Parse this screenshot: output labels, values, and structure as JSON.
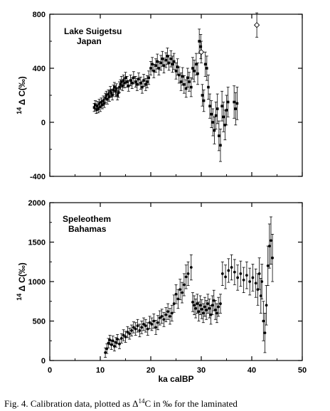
{
  "caption": {
    "prefix": "Fig.  4. Calibration data, plotted as Δ",
    "sup": "14",
    "suffix": "C in ‰ for the laminated"
  },
  "chart_data": [
    {
      "type": "scatter",
      "annotation": [
        "Lake Suigetsu",
        "Japan"
      ],
      "ylabel_sup": "14",
      "ylabel": "Δ C(‰)",
      "xlabel": "",
      "xlim": [
        0,
        50
      ],
      "ylim": [
        -400,
        800
      ],
      "xticks": [
        0,
        10,
        20,
        30,
        40,
        50
      ],
      "yticks": [
        -400,
        0,
        400,
        800
      ],
      "show_x_tick_labels": false,
      "grid": false,
      "series": [
        {
          "marker": "filled-square",
          "points": [
            [
              8.8,
              110,
              30
            ],
            [
              9.0,
              130,
              30
            ],
            [
              9.2,
              95,
              30
            ],
            [
              9.4,
              120,
              35
            ],
            [
              9.6,
              100,
              30
            ],
            [
              9.8,
              140,
              30
            ],
            [
              10.0,
              115,
              35
            ],
            [
              10.2,
              150,
              30
            ],
            [
              10.4,
              130,
              30
            ],
            [
              10.6,
              160,
              35
            ],
            [
              10.8,
              140,
              30
            ],
            [
              11.0,
              180,
              35
            ],
            [
              11.2,
              200,
              30
            ],
            [
              11.4,
              170,
              35
            ],
            [
              11.6,
              210,
              30
            ],
            [
              11.8,
              190,
              35
            ],
            [
              12.0,
              230,
              35
            ],
            [
              12.2,
              215,
              30
            ],
            [
              12.4,
              200,
              35
            ],
            [
              12.6,
              240,
              35
            ],
            [
              12.8,
              260,
              35
            ],
            [
              13.0,
              230,
              40
            ],
            [
              13.2,
              250,
              35
            ],
            [
              13.4,
              200,
              35
            ],
            [
              13.6,
              220,
              35
            ],
            [
              13.8,
              260,
              40
            ],
            [
              14.0,
              280,
              35
            ],
            [
              14.2,
              300,
              40
            ],
            [
              14.4,
              270,
              35
            ],
            [
              14.6,
              310,
              40
            ],
            [
              14.8,
              290,
              35
            ],
            [
              15.0,
              330,
              40
            ],
            [
              15.3,
              300,
              40
            ],
            [
              15.6,
              270,
              40
            ],
            [
              16.0,
              310,
              40
            ],
            [
              16.3,
              290,
              40
            ],
            [
              16.6,
              330,
              45
            ],
            [
              17.0,
              300,
              40
            ],
            [
              17.3,
              280,
              45
            ],
            [
              17.6,
              320,
              45
            ],
            [
              18.0,
              290,
              45
            ],
            [
              18.3,
              260,
              45
            ],
            [
              18.6,
              310,
              45
            ],
            [
              19.0,
              280,
              45
            ],
            [
              19.3,
              300,
              45
            ],
            [
              19.6,
              330,
              50
            ],
            [
              20.0,
              400,
              50
            ],
            [
              20.3,
              430,
              50
            ],
            [
              20.6,
              380,
              50
            ],
            [
              21.0,
              420,
              50
            ],
            [
              21.3,
              450,
              55
            ],
            [
              21.6,
              400,
              50
            ],
            [
              22.0,
              440,
              55
            ],
            [
              22.3,
              470,
              55
            ],
            [
              22.6,
              420,
              55
            ],
            [
              23.0,
              460,
              55
            ],
            [
              23.3,
              490,
              60
            ],
            [
              23.6,
              440,
              55
            ],
            [
              24.0,
              470,
              60
            ],
            [
              24.3,
              430,
              60
            ],
            [
              24.6,
              450,
              60
            ],
            [
              25.0,
              380,
              60
            ],
            [
              25.3,
              410,
              60
            ],
            [
              25.6,
              350,
              60
            ],
            [
              26.0,
              300,
              65
            ],
            [
              26.3,
              340,
              65
            ],
            [
              26.6,
              280,
              65
            ],
            [
              27.0,
              250,
              65
            ],
            [
              27.3,
              330,
              70
            ],
            [
              27.6,
              300,
              70
            ],
            [
              28.0,
              260,
              70
            ],
            [
              28.3,
              400,
              80
            ],
            [
              28.6,
              380,
              80
            ],
            [
              29.0,
              430,
              80
            ],
            [
              29.3,
              360,
              80
            ],
            [
              29.6,
              600,
              90
            ],
            [
              29.9,
              560,
              90
            ],
            [
              30.2,
              200,
              80
            ],
            [
              30.5,
              160,
              80
            ],
            [
              30.8,
              430,
              90
            ],
            [
              31.1,
              400,
              90
            ],
            [
              31.4,
              260,
              90
            ],
            [
              31.7,
              120,
              90
            ],
            [
              32.0,
              60,
              100
            ],
            [
              32.3,
              0,
              100
            ],
            [
              32.6,
              -60,
              100
            ],
            [
              32.9,
              50,
              100
            ],
            [
              33.2,
              100,
              110
            ],
            [
              33.5,
              -100,
              110
            ],
            [
              33.8,
              -170,
              120
            ],
            [
              34.1,
              120,
              110
            ],
            [
              34.4,
              40,
              110
            ],
            [
              34.7,
              -20,
              110
            ],
            [
              35.0,
              90,
              110
            ],
            [
              35.3,
              150,
              110
            ],
            [
              36.5,
              150,
              120
            ],
            [
              36.8,
              100,
              120
            ],
            [
              37.1,
              140,
              120
            ]
          ]
        },
        {
          "marker": "open-diamond",
          "points": [
            [
              30.0,
              520,
              80
            ],
            [
              41.0,
              720,
              90
            ]
          ]
        }
      ]
    },
    {
      "type": "scatter",
      "annotation": [
        "Speleothem",
        "Bahamas"
      ],
      "ylabel_sup": "14",
      "ylabel": "Δ C(‰)",
      "xlabel": "ka calBP",
      "xlim": [
        0,
        50
      ],
      "ylim": [
        0,
        2000
      ],
      "xticks": [
        0,
        10,
        20,
        30,
        40,
        50
      ],
      "yticks": [
        0,
        500,
        1000,
        1500,
        2000
      ],
      "show_x_tick_labels": true,
      "grid": false,
      "series": [
        {
          "marker": "filled-circle",
          "points": [
            [
              11.0,
              100,
              60
            ],
            [
              11.3,
              150,
              60
            ],
            [
              11.6,
              220,
              60
            ],
            [
              11.9,
              260,
              60
            ],
            [
              12.2,
              200,
              60
            ],
            [
              12.5,
              250,
              60
            ],
            [
              12.8,
              180,
              60
            ],
            [
              13.1,
              230,
              60
            ],
            [
              13.4,
              270,
              60
            ],
            [
              13.8,
              210,
              60
            ],
            [
              14.2,
              280,
              60
            ],
            [
              14.6,
              320,
              70
            ],
            [
              15.0,
              300,
              70
            ],
            [
              15.4,
              360,
              70
            ],
            [
              15.8,
              340,
              70
            ],
            [
              16.2,
              380,
              70
            ],
            [
              16.6,
              420,
              70
            ],
            [
              17.0,
              400,
              80
            ],
            [
              17.4,
              440,
              80
            ],
            [
              17.8,
              380,
              80
            ],
            [
              18.2,
              420,
              80
            ],
            [
              18.6,
              460,
              80
            ],
            [
              19.0,
              440,
              80
            ],
            [
              19.4,
              400,
              80
            ],
            [
              19.8,
              480,
              80
            ],
            [
              20.2,
              460,
              80
            ],
            [
              20.6,
              500,
              90
            ],
            [
              21.0,
              420,
              90
            ],
            [
              21.4,
              480,
              90
            ],
            [
              21.8,
              540,
              90
            ],
            [
              22.2,
              560,
              90
            ],
            [
              22.6,
              520,
              90
            ],
            [
              23.0,
              580,
              90
            ],
            [
              23.4,
              620,
              100
            ],
            [
              23.8,
              560,
              100
            ],
            [
              24.2,
              600,
              100
            ],
            [
              24.6,
              720,
              110
            ],
            [
              25.0,
              840,
              120
            ],
            [
              25.4,
              780,
              120
            ],
            [
              25.8,
              900,
              130
            ],
            [
              26.2,
              860,
              130
            ],
            [
              26.6,
              960,
              140
            ],
            [
              27.0,
              1060,
              150
            ],
            [
              27.4,
              1100,
              150
            ],
            [
              28.0,
              1180,
              160
            ],
            [
              28.3,
              740,
              120
            ],
            [
              28.6,
              700,
              120
            ],
            [
              28.9,
              660,
              120
            ],
            [
              29.2,
              720,
              120
            ],
            [
              29.5,
              620,
              120
            ],
            [
              29.8,
              700,
              120
            ],
            [
              30.1,
              650,
              120
            ],
            [
              30.4,
              600,
              120
            ],
            [
              30.7,
              680,
              120
            ],
            [
              31.0,
              640,
              120
            ],
            [
              31.3,
              720,
              120
            ],
            [
              31.6,
              660,
              120
            ],
            [
              31.9,
              580,
              120
            ],
            [
              32.2,
              700,
              120
            ],
            [
              32.5,
              760,
              130
            ],
            [
              32.8,
              640,
              120
            ],
            [
              33.1,
              600,
              120
            ],
            [
              33.4,
              680,
              120
            ],
            [
              33.8,
              720,
              120
            ],
            [
              34.2,
              1100,
              150
            ],
            [
              34.8,
              1060,
              150
            ],
            [
              35.4,
              1140,
              150
            ],
            [
              36.0,
              1180,
              160
            ],
            [
              36.6,
              1120,
              160
            ],
            [
              37.2,
              1050,
              160
            ],
            [
              37.8,
              1100,
              160
            ],
            [
              38.4,
              1020,
              160
            ],
            [
              39.0,
              1080,
              170
            ],
            [
              39.6,
              1000,
              170
            ],
            [
              40.2,
              1050,
              170
            ],
            [
              40.8,
              980,
              180
            ],
            [
              41.2,
              900,
              200
            ],
            [
              41.5,
              1100,
              200
            ],
            [
              41.8,
              820,
              220
            ],
            [
              42.0,
              1000,
              220
            ],
            [
              42.3,
              500,
              250
            ],
            [
              42.6,
              350,
              250
            ],
            [
              42.9,
              700,
              250
            ],
            [
              43.2,
              1200,
              250
            ],
            [
              43.5,
              1450,
              280
            ],
            [
              43.8,
              1520,
              300
            ],
            [
              44.1,
              1300,
              300
            ]
          ]
        }
      ]
    }
  ]
}
